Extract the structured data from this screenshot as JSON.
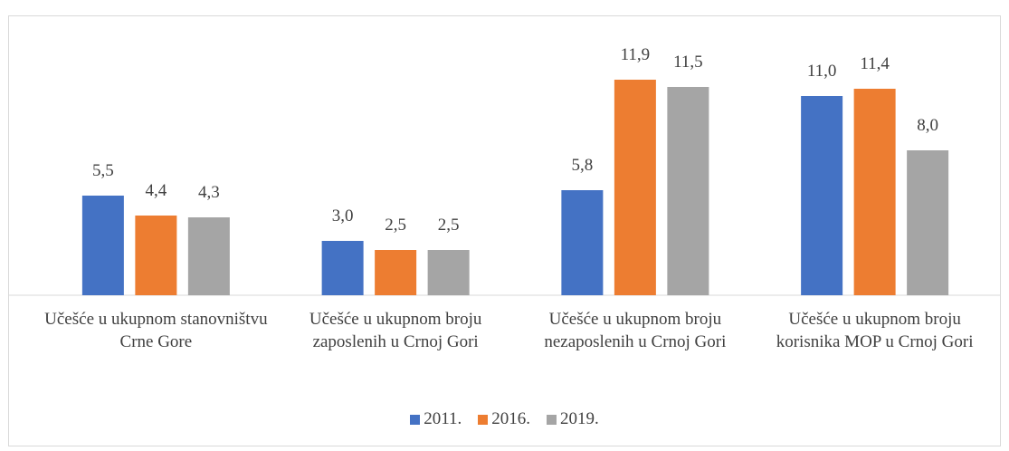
{
  "chart_data": {
    "type": "bar",
    "categories": [
      "Učešće u ukupnom stanovništvu Crne Gore",
      "Učešće u ukupnom broju zaposlenih u Crnoj Gori",
      "Učešće u ukupnom broju nezaposlenih  u Crnoj Gori",
      "Učešće u ukupnom broju korisnika MOP u Crnoj Gori"
    ],
    "series": [
      {
        "name": "2011.",
        "color": "#4472c4",
        "values": [
          5.5,
          3.0,
          5.8,
          11.0
        ],
        "value_labels": [
          "5,5",
          "3,0",
          "5,8",
          "11,0"
        ]
      },
      {
        "name": "2016.",
        "color": "#ed7d31",
        "values": [
          4.4,
          2.5,
          11.9,
          11.4
        ],
        "value_labels": [
          "4,4",
          "2,5",
          "11,9",
          "11,4"
        ]
      },
      {
        "name": "2019.",
        "color": "#a5a5a5",
        "values": [
          4.3,
          2.5,
          11.5,
          8.0
        ],
        "value_labels": [
          "4,3",
          "2,5",
          "11,5",
          "8,0"
        ]
      }
    ],
    "ylim": [
      0,
      14
    ],
    "legend": "bottom"
  }
}
